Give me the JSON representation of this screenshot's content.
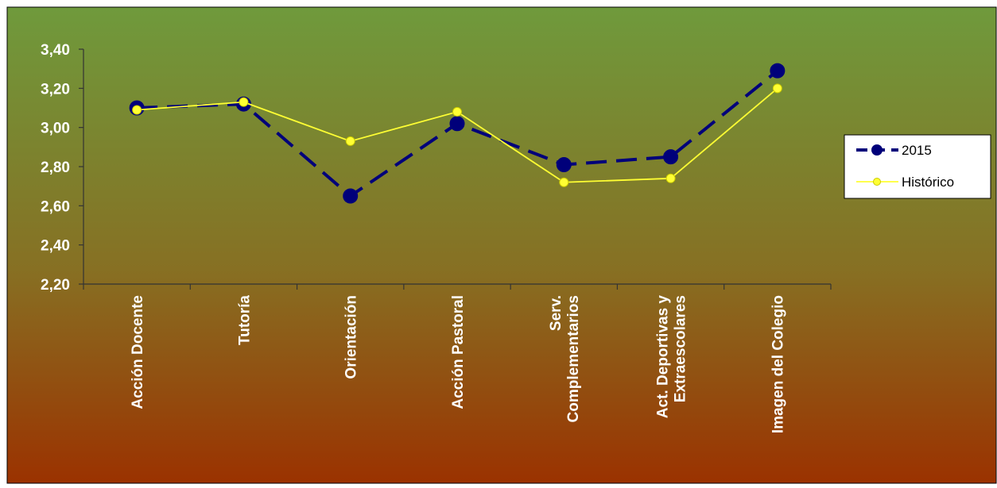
{
  "chart_data": {
    "type": "line",
    "categories": [
      [
        "Acción Docente"
      ],
      [
        "Tutoría"
      ],
      [
        "Orientación"
      ],
      [
        "Acción Pastoral"
      ],
      [
        "Serv.",
        "Complementarios"
      ],
      [
        "Act. Deportivas y",
        "Extraescolares"
      ],
      [
        "Imagen del Colegio"
      ]
    ],
    "series": [
      {
        "name": "2015",
        "values": [
          3.1,
          3.12,
          2.65,
          3.02,
          2.81,
          2.85,
          3.29
        ],
        "color": "#00007a",
        "style": "dashed-large-markers"
      },
      {
        "name": "Histórico",
        "values": [
          3.09,
          3.13,
          2.93,
          3.08,
          2.72,
          2.74,
          3.2
        ],
        "color": "#ffff33",
        "style": "solid-small-markers"
      }
    ],
    "ylim": [
      2.2,
      3.4
    ],
    "yticks": [
      "2,20",
      "2,40",
      "2,60",
      "2,80",
      "3,00",
      "3,20",
      "3,40"
    ],
    "grid": false,
    "legend_position": "right",
    "background": {
      "top": "#6f9a3c",
      "bottom": "#993300"
    }
  }
}
